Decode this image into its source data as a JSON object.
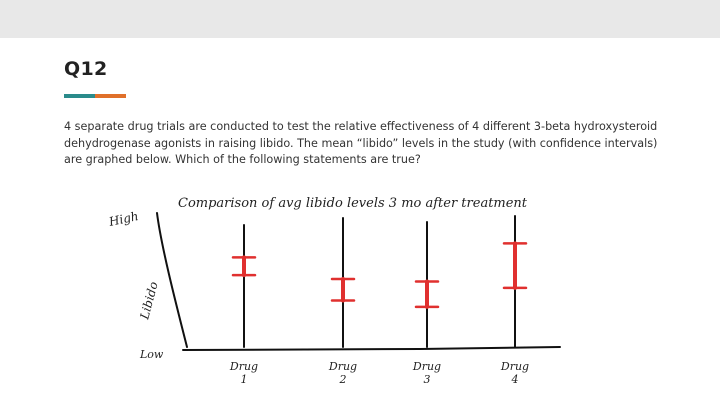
{
  "slide": {
    "title": "Q12",
    "body": "4 separate drug trials are conducted to test the relative effectiveness of 4 different 3-beta hydroxysteroid dehydrogenase agonists in raising libido. The mean “libido” levels in the study (with confidence intervals) are graphed below. Which of the following statements are true?",
    "colors": {
      "teal": "#2a8b8b",
      "orange": "#e0702a",
      "ci_red": "#e0302f"
    }
  },
  "chart_data": {
    "type": "scatter",
    "title": "Comparison of avg libido levels 3 mo after treatment",
    "ylabel": "Libido",
    "y_top_label": "High",
    "y_bottom_label": "Low",
    "ylim": [
      0,
      100
    ],
    "categories": [
      "Drug 1",
      "Drug 2",
      "Drug 3",
      "Drug 4"
    ],
    "category_lines": [
      [
        "Drug",
        "1"
      ],
      [
        "Drug",
        "2"
      ],
      [
        "Drug",
        "3"
      ],
      [
        "Drug",
        "4"
      ]
    ],
    "series": [
      {
        "ci_low": [
          55,
          35,
          30,
          45
        ],
        "ci_high": [
          69,
          52,
          50,
          80
        ]
      }
    ]
  }
}
